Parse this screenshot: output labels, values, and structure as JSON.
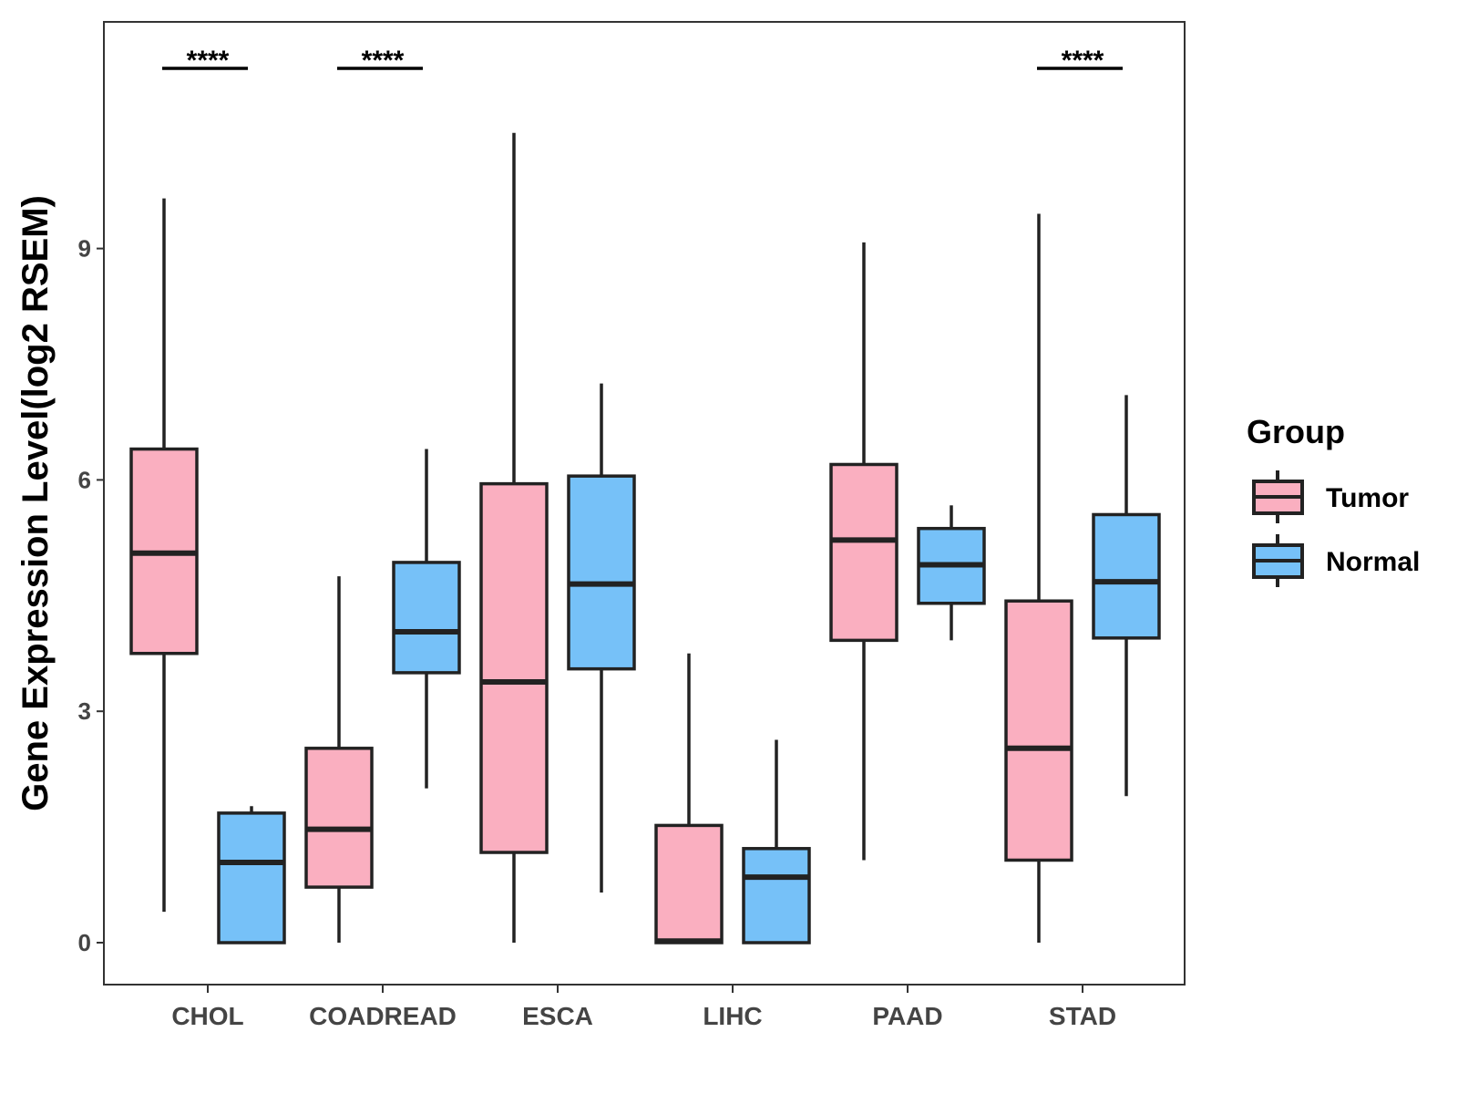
{
  "chart_data": {
    "type": "box",
    "title": "",
    "xlabel": "",
    "ylabel": "Gene Expression Level(log2 RSEM)",
    "ylim": [
      -0.55,
      11.95
    ],
    "yticks": [
      0,
      3,
      6,
      9
    ],
    "categories": [
      "CHOL",
      "COADREAD",
      "ESCA",
      "LIHC",
      "PAAD",
      "STAD"
    ],
    "legend": {
      "title": "Group",
      "position": "right",
      "entries": [
        {
          "name": "Tumor",
          "color": "#FAAFC0"
        },
        {
          "name": "Normal",
          "color": "#76C1F8"
        }
      ]
    },
    "series": [
      {
        "name": "Tumor",
        "color": "#FAAFC0",
        "boxes": [
          {
            "category": "CHOL",
            "min": 0.4,
            "q1": 3.75,
            "median": 5.05,
            "q3": 6.4,
            "max": 9.65
          },
          {
            "category": "COADREAD",
            "min": 0.0,
            "q1": 0.72,
            "median": 1.47,
            "q3": 2.52,
            "max": 4.75
          },
          {
            "category": "ESCA",
            "min": 0.0,
            "q1": 1.17,
            "median": 3.38,
            "q3": 5.95,
            "max": 10.5
          },
          {
            "category": "LIHC",
            "min": 0.0,
            "q1": 0.0,
            "median": 0.02,
            "q3": 1.52,
            "max": 3.75
          },
          {
            "category": "PAAD",
            "min": 1.07,
            "q1": 3.92,
            "median": 5.22,
            "q3": 6.2,
            "max": 9.08
          },
          {
            "category": "STAD",
            "min": 0.0,
            "q1": 1.07,
            "median": 2.52,
            "q3": 4.43,
            "max": 9.45
          }
        ]
      },
      {
        "name": "Normal",
        "color": "#76C1F8",
        "boxes": [
          {
            "category": "CHOL",
            "min": 0.0,
            "q1": 0.0,
            "median": 1.04,
            "q3": 1.68,
            "max": 1.77
          },
          {
            "category": "COADREAD",
            "min": 2.0,
            "q1": 3.5,
            "median": 4.03,
            "q3": 4.93,
            "max": 6.4
          },
          {
            "category": "ESCA",
            "min": 0.65,
            "q1": 3.55,
            "median": 4.65,
            "q3": 6.05,
            "max": 7.25
          },
          {
            "category": "LIHC",
            "min": 0.0,
            "q1": 0.0,
            "median": 0.85,
            "q3": 1.22,
            "max": 2.63
          },
          {
            "category": "PAAD",
            "min": 3.92,
            "q1": 4.4,
            "median": 4.9,
            "q3": 5.37,
            "max": 5.67
          },
          {
            "category": "STAD",
            "min": 1.9,
            "q1": 3.95,
            "median": 4.68,
            "q3": 5.55,
            "max": 7.1
          }
        ]
      }
    ],
    "annotations": [
      {
        "category": "CHOL",
        "text": "****"
      },
      {
        "category": "COADREAD",
        "text": "****"
      },
      {
        "category": "STAD",
        "text": "****"
      }
    ]
  }
}
